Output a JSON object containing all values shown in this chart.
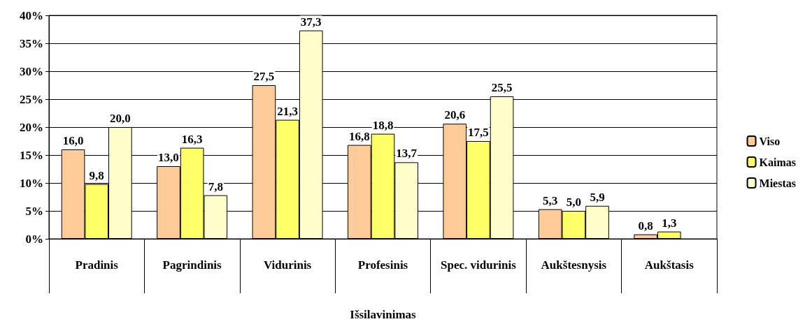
{
  "chart_data": {
    "type": "bar",
    "xlabel": "Išsilavinimas",
    "categories": [
      "Pradinis",
      "Pagrindinis",
      "Vidurinis",
      "Profesinis",
      "Spec. vidurinis",
      "Aukštesnysis",
      "Aukštasis"
    ],
    "series": [
      {
        "name": "Viso",
        "color": "#ffcc99",
        "values": [
          16.0,
          13.0,
          27.5,
          16.8,
          20.6,
          5.3,
          0.8
        ],
        "value_labels": [
          "16,0",
          "13,0",
          "27,5",
          "16,8",
          "20,6",
          "5,3",
          "0,8"
        ]
      },
      {
        "name": "Kaimas",
        "color": "#ffff66",
        "values": [
          9.8,
          16.3,
          21.3,
          18.8,
          17.5,
          5.0,
          1.3
        ],
        "value_labels": [
          "9,8",
          "16,3",
          "21,3",
          "18,8",
          "17,5",
          "5,0",
          "1,3"
        ]
      },
      {
        "name": "Miestas",
        "color": "#ffffcc",
        "values": [
          20.0,
          7.8,
          37.3,
          13.7,
          25.5,
          5.9,
          null
        ],
        "value_labels": [
          "20,0",
          "7,8",
          "37,3",
          "13,7",
          "25,5",
          "5,9",
          null
        ]
      }
    ],
    "ylim": [
      0,
      40
    ],
    "yticks": [
      {
        "value": 0,
        "label": "0%"
      },
      {
        "value": 5,
        "label": "5%"
      },
      {
        "value": 10,
        "label": "10%"
      },
      {
        "value": 15,
        "label": "15%"
      },
      {
        "value": 20,
        "label": "20%"
      },
      {
        "value": 25,
        "label": "25%"
      },
      {
        "value": 30,
        "label": "30%"
      },
      {
        "value": 35,
        "label": "35%"
      },
      {
        "value": 40,
        "label": "40%"
      }
    ],
    "grid": "y",
    "legend": "right"
  }
}
